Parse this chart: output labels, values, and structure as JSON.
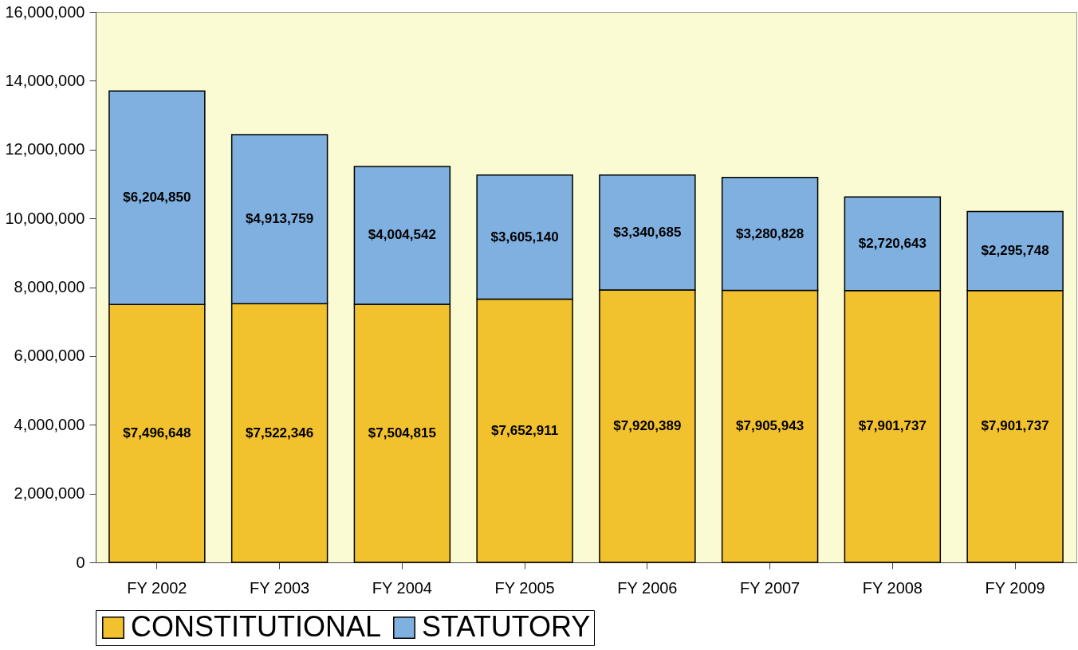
{
  "chart_data": {
    "type": "bar",
    "stacked": true,
    "categories": [
      "FY 2002",
      "FY 2003",
      "FY 2004",
      "FY 2005",
      "FY 2006",
      "FY 2007",
      "FY 2008",
      "FY 2009"
    ],
    "series": [
      {
        "name": "CONSTITUTIONAL",
        "color": "#f2c12e",
        "values": [
          7496648,
          7522346,
          7504815,
          7652911,
          7920389,
          7905943,
          7901737,
          7901737
        ],
        "value_labels": [
          "$7,496,648",
          "$7,522,346",
          "$7,504,815",
          "$7,652,911",
          "$7,920,389",
          "$7,905,943",
          "$7,901,737",
          "$7,901,737"
        ]
      },
      {
        "name": "STATUTORY",
        "color": "#7fb0e0",
        "values": [
          6204850,
          4913759,
          4004542,
          3605140,
          3340685,
          3280828,
          2720643,
          2295748
        ],
        "value_labels": [
          "$6,204,850",
          "$4,913,759",
          "$4,004,542",
          "$3,605,140",
          "$3,340,685",
          "$3,280,828",
          "$2,720,643",
          "$2,295,748"
        ]
      }
    ],
    "ylim": [
      0,
      16000000
    ],
    "yticks": [
      0,
      {
        "value": 2000000,
        "label": "2,000,000"
      },
      {
        "value": 4000000,
        "label": "4,000,000"
      },
      {
        "value": 6000000,
        "label": "6,000,000"
      },
      {
        "value": 8000000,
        "label": "8,000,000"
      },
      {
        "value": 10000000,
        "label": "10,000,000"
      },
      {
        "value": 12000000,
        "label": "12,000,000"
      },
      {
        "value": 14000000,
        "label": "14,000,000"
      },
      {
        "value": 16000000,
        "label": "16,000,000"
      }
    ],
    "grid": false,
    "legend": "bottom"
  }
}
